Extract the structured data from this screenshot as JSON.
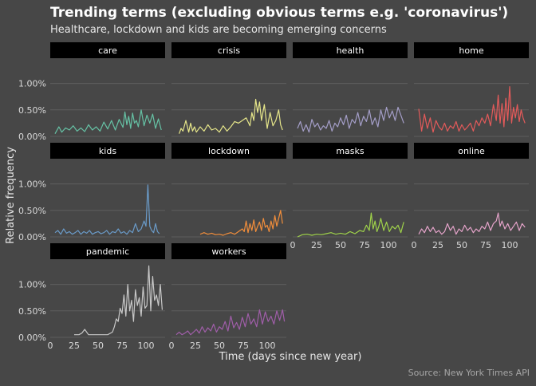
{
  "title": "Trending terms (excluding obvious terms e.g. 'coronavirus')",
  "subtitle": "Healthcare, lockdown and kids are becoming emerging concerns",
  "caption": "Source: New York Times API",
  "xlabel": "Time (days since new year)",
  "ylabel": "Relative frequency",
  "colors": {
    "background": "#474747",
    "strip": "#000000",
    "grid": "#5e5e5e",
    "text": "#ffffff",
    "axis_text": "#d9d9d9",
    "caption": "#a6a6a6"
  },
  "chart_data": {
    "type": "line",
    "facets": true,
    "xlim": [
      0,
      120
    ],
    "x_ticks": [
      0,
      25,
      50,
      75,
      100
    ],
    "x_tick_labels": [
      "0",
      "25",
      "50",
      "75",
      "100"
    ],
    "ylim": [
      0,
      1.4
    ],
    "y_ticks": [
      0,
      0.5,
      1.0
    ],
    "y_tick_labels": [
      "0.00%",
      "0.50%",
      "1.00%"
    ],
    "grid": true,
    "series": [
      {
        "name": "care",
        "color": "#66c2a5",
        "x": [
          5,
          9,
          12,
          16,
          20,
          24,
          28,
          32,
          36,
          40,
          44,
          48,
          52,
          56,
          60,
          64,
          68,
          72,
          76,
          78,
          80,
          82,
          84,
          86,
          88,
          90,
          92,
          95,
          98,
          101,
          104,
          107,
          110,
          113,
          116
        ],
        "y": [
          0.05,
          0.18,
          0.08,
          0.16,
          0.12,
          0.2,
          0.1,
          0.16,
          0.09,
          0.22,
          0.12,
          0.18,
          0.1,
          0.27,
          0.14,
          0.3,
          0.12,
          0.32,
          0.17,
          0.46,
          0.22,
          0.38,
          0.15,
          0.44,
          0.25,
          0.3,
          0.18,
          0.5,
          0.2,
          0.4,
          0.25,
          0.42,
          0.15,
          0.33,
          0.12
        ]
      },
      {
        "name": "crisis",
        "color": "#e6e68a",
        "x": [
          8,
          10,
          12,
          15,
          18,
          20,
          22,
          24,
          26,
          30,
          34,
          38,
          42,
          46,
          50,
          54,
          58,
          62,
          66,
          70,
          74,
          78,
          82,
          84,
          86,
          88,
          90,
          92,
          94,
          97,
          100,
          103,
          106,
          109,
          112,
          114,
          116
        ],
        "y": [
          0.05,
          0.15,
          0.1,
          0.3,
          0.08,
          0.25,
          0.1,
          0.18,
          0.08,
          0.18,
          0.1,
          0.22,
          0.12,
          0.15,
          0.08,
          0.2,
          0.1,
          0.18,
          0.28,
          0.25,
          0.3,
          0.35,
          0.2,
          0.45,
          0.3,
          0.7,
          0.45,
          0.65,
          0.3,
          0.6,
          0.15,
          0.45,
          0.2,
          0.3,
          0.5,
          0.22,
          0.12
        ]
      },
      {
        "name": "health",
        "color": "#a49ec8",
        "x": [
          5,
          8,
          11,
          14,
          17,
          20,
          23,
          26,
          29,
          32,
          35,
          38,
          41,
          44,
          47,
          50,
          53,
          56,
          59,
          62,
          65,
          68,
          71,
          74,
          77,
          80,
          83,
          86,
          89,
          92,
          95,
          98,
          101,
          104,
          107,
          110,
          113,
          116
        ],
        "y": [
          0.15,
          0.28,
          0.1,
          0.22,
          0.08,
          0.32,
          0.18,
          0.25,
          0.12,
          0.2,
          0.15,
          0.3,
          0.1,
          0.25,
          0.18,
          0.35,
          0.22,
          0.4,
          0.15,
          0.32,
          0.25,
          0.45,
          0.2,
          0.38,
          0.28,
          0.5,
          0.22,
          0.35,
          0.18,
          0.5,
          0.3,
          0.55,
          0.35,
          0.48,
          0.3,
          0.55,
          0.4,
          0.25
        ]
      },
      {
        "name": "home",
        "color": "#e45a5a",
        "x": [
          5,
          8,
          11,
          14,
          17,
          20,
          23,
          26,
          29,
          32,
          35,
          38,
          41,
          44,
          47,
          50,
          53,
          56,
          59,
          62,
          65,
          68,
          71,
          74,
          77,
          80,
          83,
          86,
          88,
          90,
          92,
          94,
          96,
          98,
          100,
          102,
          104,
          106,
          108,
          110,
          112,
          114,
          116
        ],
        "y": [
          0.52,
          0.1,
          0.42,
          0.15,
          0.35,
          0.08,
          0.3,
          0.18,
          0.12,
          0.25,
          0.1,
          0.2,
          0.15,
          0.28,
          0.1,
          0.22,
          0.12,
          0.18,
          0.25,
          0.1,
          0.3,
          0.2,
          0.35,
          0.25,
          0.42,
          0.2,
          0.6,
          0.3,
          0.78,
          0.25,
          0.62,
          0.18,
          0.72,
          0.3,
          0.94,
          0.25,
          0.55,
          0.35,
          0.6,
          0.28,
          0.5,
          0.35,
          0.25
        ]
      },
      {
        "name": "kids",
        "color": "#6a9bc9",
        "x": [
          5,
          8,
          11,
          14,
          17,
          20,
          23,
          26,
          29,
          32,
          35,
          38,
          41,
          44,
          47,
          50,
          53,
          56,
          59,
          62,
          65,
          68,
          71,
          74,
          77,
          80,
          83,
          86,
          89,
          92,
          95,
          98,
          100,
          102,
          104,
          106,
          108,
          110,
          112,
          114
        ],
        "y": [
          0.08,
          0.12,
          0.05,
          0.15,
          0.07,
          0.1,
          0.05,
          0.08,
          0.12,
          0.05,
          0.1,
          0.07,
          0.12,
          0.05,
          0.08,
          0.1,
          0.06,
          0.08,
          0.12,
          0.05,
          0.1,
          0.08,
          0.15,
          0.07,
          0.1,
          0.05,
          0.12,
          0.08,
          0.25,
          0.1,
          0.15,
          0.3,
          0.2,
          0.98,
          0.2,
          0.12,
          0.08,
          0.25,
          0.1,
          0.06
        ]
      },
      {
        "name": "lockdown",
        "color": "#f28e3b",
        "x": [
          30,
          34,
          38,
          42,
          46,
          50,
          54,
          58,
          62,
          66,
          70,
          74,
          76,
          78,
          80,
          82,
          84,
          86,
          88,
          90,
          92,
          94,
          96,
          98,
          100,
          102,
          104,
          106,
          108,
          110,
          112,
          114,
          116
        ],
        "y": [
          0.05,
          0.08,
          0.05,
          0.07,
          0.04,
          0.05,
          0.03,
          0.06,
          0.08,
          0.05,
          0.1,
          0.15,
          0.1,
          0.3,
          0.08,
          0.25,
          0.12,
          0.32,
          0.1,
          0.2,
          0.28,
          0.12,
          0.35,
          0.18,
          0.22,
          0.1,
          0.3,
          0.15,
          0.4,
          0.2,
          0.35,
          0.5,
          0.25
        ]
      },
      {
        "name": "masks",
        "color": "#9fd24a",
        "x": [
          5,
          10,
          15,
          20,
          25,
          30,
          35,
          40,
          45,
          50,
          55,
          60,
          65,
          70,
          74,
          77,
          80,
          82,
          84,
          86,
          88,
          90,
          92,
          95,
          98,
          101,
          104,
          107,
          110,
          113,
          116
        ],
        "y": [
          0.0,
          0.04,
          0.05,
          0.03,
          0.05,
          0.04,
          0.06,
          0.08,
          0.05,
          0.07,
          0.05,
          0.1,
          0.06,
          0.12,
          0.1,
          0.22,
          0.12,
          0.45,
          0.15,
          0.3,
          0.1,
          0.2,
          0.35,
          0.12,
          0.28,
          0.1,
          0.2,
          0.15,
          0.22,
          0.08,
          0.28
        ]
      },
      {
        "name": "online",
        "color": "#e4a3c9",
        "x": [
          5,
          8,
          11,
          14,
          17,
          20,
          23,
          26,
          29,
          32,
          35,
          38,
          41,
          44,
          47,
          50,
          53,
          56,
          59,
          62,
          65,
          68,
          71,
          74,
          77,
          80,
          83,
          86,
          88,
          90,
          92,
          95,
          98,
          101,
          104,
          107,
          110,
          113,
          116
        ],
        "y": [
          0.05,
          0.15,
          0.08,
          0.2,
          0.1,
          0.18,
          0.08,
          0.12,
          0.05,
          0.1,
          0.25,
          0.12,
          0.2,
          0.05,
          0.15,
          0.1,
          0.22,
          0.12,
          0.18,
          0.08,
          0.15,
          0.1,
          0.2,
          0.15,
          0.28,
          0.12,
          0.25,
          0.3,
          0.45,
          0.2,
          0.3,
          0.15,
          0.25,
          0.12,
          0.2,
          0.28,
          0.12,
          0.25,
          0.18
        ]
      },
      {
        "name": "pandemic",
        "color": "#c8c8c8",
        "x": [
          25,
          28,
          30,
          33,
          36,
          40,
          45,
          50,
          55,
          60,
          65,
          67,
          69,
          71,
          73,
          75,
          77,
          79,
          81,
          83,
          85,
          87,
          89,
          91,
          93,
          95,
          97,
          99,
          101,
          103,
          105,
          107,
          109,
          111,
          113,
          115,
          117
        ],
        "y": [
          0.05,
          0.05,
          0.05,
          0.08,
          0.15,
          0.05,
          0.05,
          0.05,
          0.05,
          0.05,
          0.1,
          0.2,
          0.35,
          0.3,
          0.55,
          0.45,
          0.8,
          0.4,
          1.0,
          0.5,
          0.7,
          0.3,
          0.9,
          0.6,
          0.75,
          0.4,
          0.95,
          0.55,
          0.6,
          1.35,
          0.5,
          1.15,
          0.7,
          0.8,
          0.6,
          1.0,
          0.52
        ]
      },
      {
        "name": "workers",
        "color": "#a05ea9",
        "x": [
          5,
          8,
          11,
          14,
          17,
          20,
          23,
          26,
          29,
          32,
          35,
          38,
          41,
          44,
          47,
          50,
          53,
          56,
          59,
          62,
          65,
          68,
          71,
          74,
          77,
          80,
          83,
          86,
          89,
          92,
          95,
          98,
          101,
          104,
          107,
          110,
          113,
          116,
          118
        ],
        "y": [
          0.05,
          0.1,
          0.05,
          0.08,
          0.12,
          0.05,
          0.1,
          0.15,
          0.08,
          0.2,
          0.1,
          0.18,
          0.12,
          0.25,
          0.1,
          0.2,
          0.15,
          0.3,
          0.12,
          0.4,
          0.18,
          0.28,
          0.15,
          0.38,
          0.2,
          0.45,
          0.25,
          0.35,
          0.2,
          0.52,
          0.25,
          0.48,
          0.3,
          0.4,
          0.25,
          0.5,
          0.32,
          0.52,
          0.3
        ]
      }
    ]
  }
}
